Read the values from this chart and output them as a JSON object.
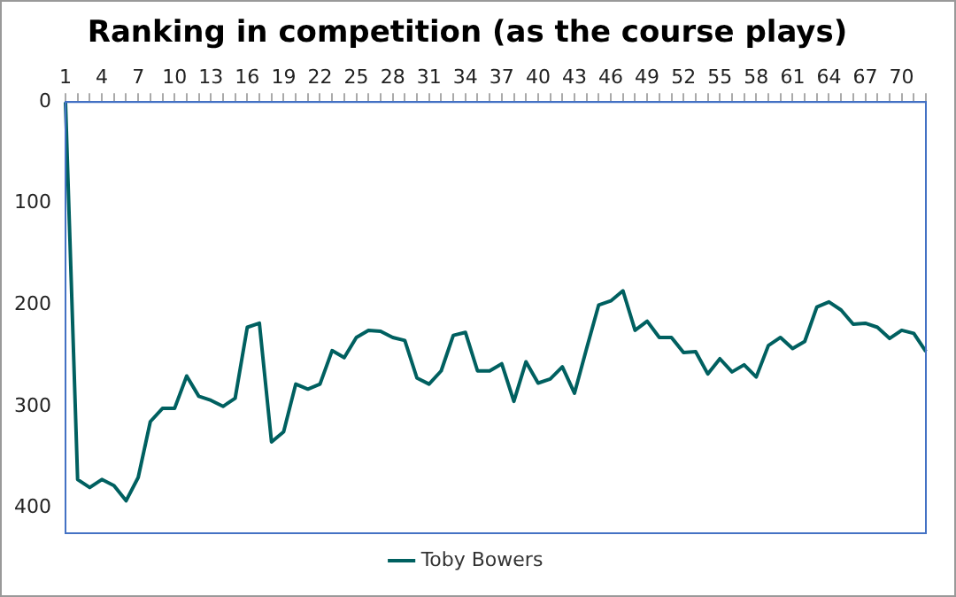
{
  "chart_data": {
    "type": "line",
    "title": "Ranking in competition (as the course plays)",
    "categories": [
      "1",
      null,
      null,
      "4",
      null,
      null,
      "7",
      null,
      null,
      "10",
      null,
      null,
      "13",
      null,
      null,
      "16",
      null,
      null,
      "19",
      null,
      null,
      "22",
      null,
      null,
      "25",
      null,
      null,
      "28",
      null,
      null,
      "31",
      null,
      null,
      "34",
      null,
      null,
      "37",
      null,
      null,
      "40",
      null,
      null,
      "43",
      null,
      null,
      "46",
      null,
      null,
      "49",
      null,
      null,
      "52",
      null,
      null,
      "55",
      null,
      null,
      "58",
      null,
      null,
      "61",
      null,
      null,
      "64",
      null,
      null,
      "67",
      null,
      null,
      "70",
      null,
      null
    ],
    "series": [
      {
        "name": "Toby Bowers",
        "color": "#006060",
        "values": [
          0,
          372,
          380,
          372,
          378,
          393,
          370,
          315,
          302,
          302,
          270,
          290,
          294,
          300,
          292,
          222,
          218,
          335,
          325,
          278,
          283,
          278,
          245,
          252,
          232,
          225,
          226,
          232,
          235,
          272,
          278,
          265,
          230,
          227,
          265,
          265,
          258,
          295,
          256,
          277,
          273,
          261,
          287,
          243,
          200,
          196,
          186,
          225,
          216,
          232,
          232,
          247,
          246,
          268,
          253,
          266,
          259,
          271,
          240,
          232,
          243,
          236,
          202,
          197,
          205,
          219,
          218,
          222,
          233,
          225,
          228,
          246
        ]
      }
    ],
    "ylim": [
      425,
      0
    ],
    "yticks": [
      0,
      100,
      200,
      300,
      400
    ],
    "legend": "bottom"
  }
}
